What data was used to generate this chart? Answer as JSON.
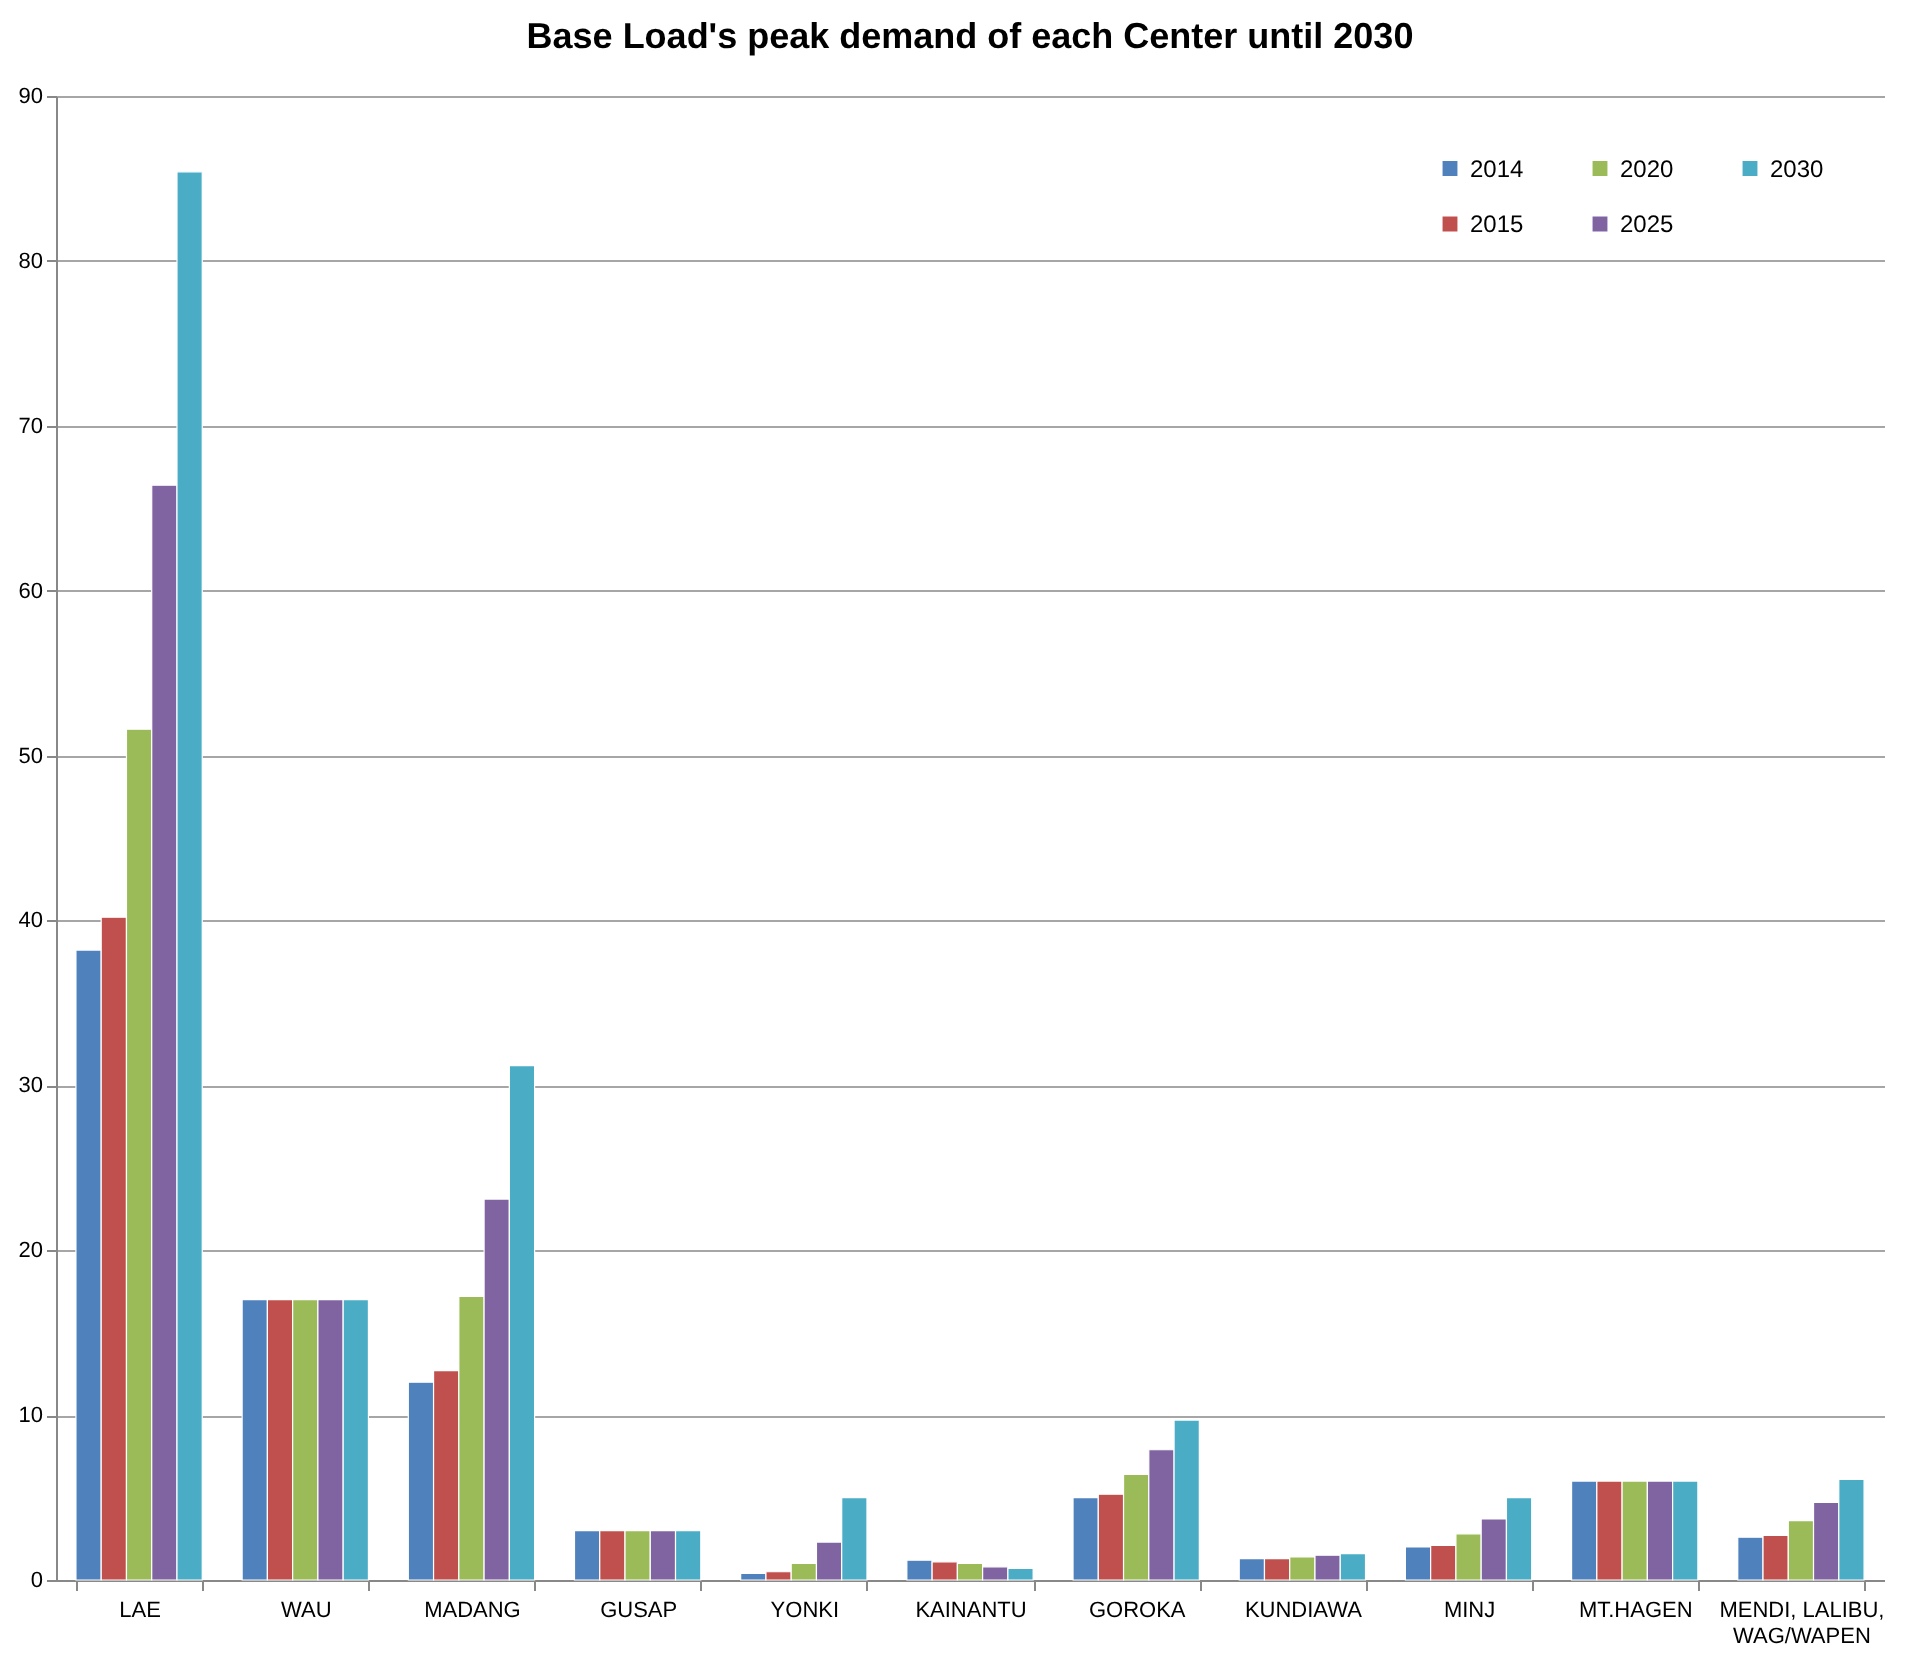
{
  "chart_data": {
    "type": "bar",
    "title": "Base Load's  peak demand of each Center  until  2030",
    "categories": [
      "LAE",
      "WAU",
      "MADANG",
      "GUSAP",
      "YONKI",
      "KAINANTU",
      "GOROKA",
      "KUNDIAWA",
      "MINJ",
      "MT.HAGEN",
      "MENDI, LALIBU, WAG/WAPEN"
    ],
    "series": [
      {
        "name": "2014",
        "color": "#4f81bd",
        "values": [
          38.2,
          17,
          12,
          3,
          0.4,
          1.2,
          5,
          1.3,
          2,
          6,
          2.6
        ]
      },
      {
        "name": "2015",
        "color": "#c0504d",
        "values": [
          40.2,
          17,
          12.7,
          3,
          0.5,
          1.1,
          5.2,
          1.3,
          2.1,
          6,
          2.7
        ]
      },
      {
        "name": "2020",
        "color": "#9bbb59",
        "values": [
          51.6,
          17,
          17.2,
          3,
          1,
          1,
          6.4,
          1.4,
          2.8,
          6,
          3.6
        ]
      },
      {
        "name": "2025",
        "color": "#8064a2",
        "values": [
          66.4,
          17,
          23.1,
          3,
          2.3,
          0.8,
          7.9,
          1.5,
          3.7,
          6,
          4.7
        ]
      },
      {
        "name": "2030",
        "color": "#4bacc6",
        "values": [
          85.4,
          17,
          31.2,
          3,
          5,
          0.7,
          9.7,
          1.6,
          5,
          6,
          6.1
        ]
      }
    ],
    "ylim": [
      0,
      90
    ],
    "yticks": [
      0,
      10,
      20,
      30,
      40,
      50,
      60,
      70,
      80,
      90
    ],
    "grid": "y",
    "legend": "top right"
  }
}
